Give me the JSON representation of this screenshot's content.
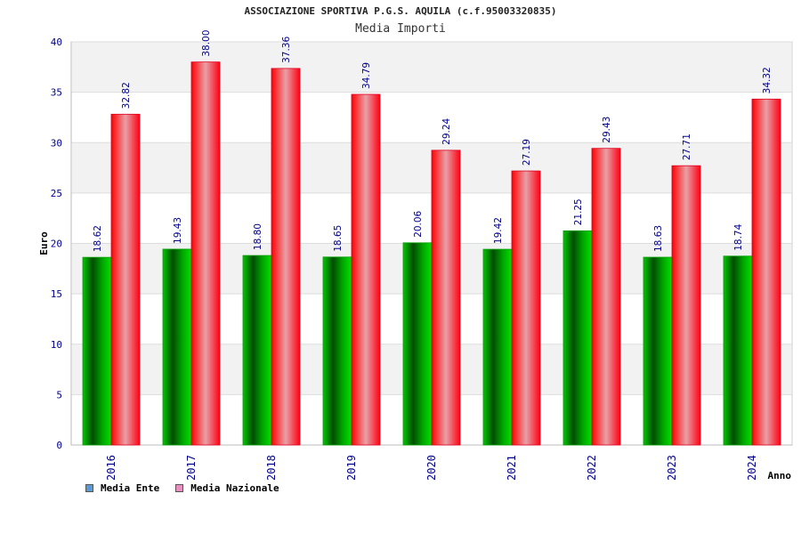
{
  "header": {
    "title": "ASSOCIAZIONE SPORTIVA P.G.S. AQUILA (c.f.95003320835)",
    "subtitle": "Media Importi"
  },
  "legend": {
    "items": [
      {
        "label": "Media Ente",
        "color": "#5b9bd5"
      },
      {
        "label": "Media Nazionale",
        "color": "#e98fbf"
      }
    ]
  },
  "colors": {
    "ente_bar": "#00b000",
    "nazionale_bar": "#f00020",
    "axis_text": "#00008b",
    "band": "#f2f2f2",
    "grid": "#dddddd"
  },
  "chart_data": {
    "type": "bar",
    "title": "ASSOCIAZIONE SPORTIVA P.G.S. AQUILA (c.f.95003320835)",
    "subtitle": "Media Importi",
    "xlabel": "Anno",
    "ylabel": "Euro",
    "ylim": [
      0,
      40
    ],
    "yticks": [
      0,
      5,
      10,
      15,
      20,
      25,
      30,
      35,
      40
    ],
    "categories": [
      "2016",
      "2017",
      "2018",
      "2019",
      "2020",
      "2021",
      "2022",
      "2023",
      "2024"
    ],
    "series": [
      {
        "name": "Media Ente",
        "values": [
          18.62,
          19.43,
          18.8,
          18.65,
          20.06,
          19.42,
          21.25,
          18.63,
          18.74
        ]
      },
      {
        "name": "Media Nazionale",
        "values": [
          32.82,
          38.0,
          37.36,
          34.79,
          29.24,
          27.19,
          29.43,
          27.71,
          34.32
        ]
      }
    ],
    "grid": true,
    "legend_position": "bottom-left"
  }
}
